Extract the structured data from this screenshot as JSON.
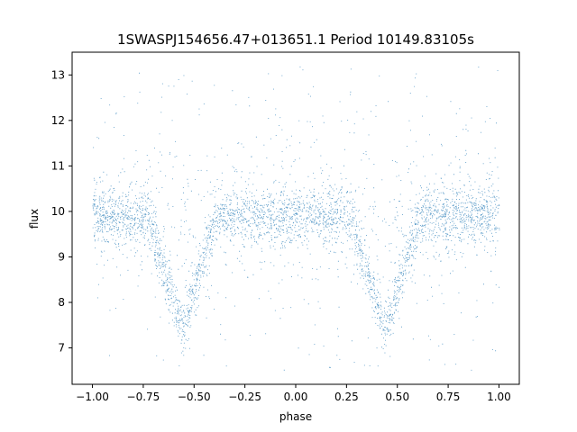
{
  "chart_data": {
    "type": "scatter",
    "title": "1SWASPJ154656.47+013651.1 Period 10149.83105s",
    "xlabel": "phase",
    "ylabel": "flux",
    "xlim": [
      -1.1,
      1.1
    ],
    "ylim": [
      6.2,
      13.5
    ],
    "xticks": [
      -1.0,
      -0.75,
      -0.5,
      -0.25,
      0.0,
      0.25,
      0.5,
      0.75,
      1.0
    ],
    "xtick_labels": [
      "−1.00",
      "−0.75",
      "−0.50",
      "−0.25",
      "0.00",
      "0.25",
      "0.50",
      "0.75",
      "1.00"
    ],
    "yticks": [
      7,
      8,
      9,
      10,
      11,
      12,
      13
    ],
    "ytick_labels": [
      "7",
      "8",
      "9",
      "10",
      "11",
      "12",
      "13"
    ],
    "grid": false,
    "legend": "none",
    "point_color": "#1f77b4",
    "x_range_of_data": [
      -1.0,
      1.0
    ],
    "baseline_flux": 9.9,
    "baseline_scatter": 0.3,
    "flux_range_of_data": [
      6.5,
      13.2
    ],
    "eclipse_minima": [
      {
        "phase": -0.56,
        "min_flux": 7.4
      },
      {
        "phase": 0.44,
        "min_flux": 7.4
      }
    ]
  }
}
